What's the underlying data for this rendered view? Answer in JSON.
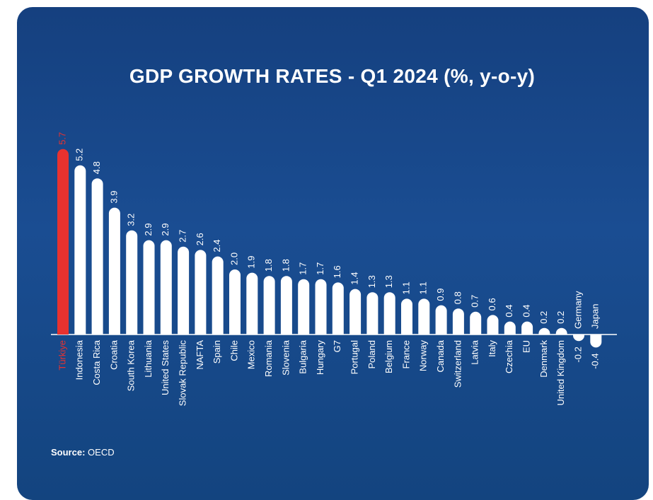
{
  "chart_data": {
    "type": "bar",
    "title": "GDP GROWTH RATES - Q1 2024 (%, y-o-y)",
    "categories": [
      "Türkiye",
      "Indonesia",
      "Costa Rica",
      "Croatia",
      "South Korea",
      "Lithuania",
      "United States",
      "Slovak Republic",
      "NAFTA",
      "Spain",
      "Chile",
      "Mexico",
      "Romania",
      "Slovenia",
      "Bulgaria",
      "Hungary",
      "G7",
      "Portugal",
      "Poland",
      "Belgium",
      "France",
      "Norway",
      "Canada",
      "Switzerland",
      "Latvia",
      "Italy",
      "Czechia",
      "EU",
      "Denmark",
      "United Kingdom",
      "Germany",
      "Japan"
    ],
    "values": [
      5.7,
      5.2,
      4.8,
      3.9,
      3.2,
      2.9,
      2.9,
      2.7,
      2.6,
      2.4,
      2.0,
      1.9,
      1.8,
      1.8,
      1.7,
      1.7,
      1.6,
      1.4,
      1.3,
      1.3,
      1.1,
      1.1,
      0.9,
      0.8,
      0.7,
      0.6,
      0.4,
      0.4,
      0.2,
      0.2,
      -0.2,
      -0.4
    ],
    "value_labels": [
      "5.7",
      "5.2",
      "4.8",
      "3.9",
      "3.2",
      "2.9",
      "2.9",
      "2.7",
      "2.6",
      "2.4",
      "2.0",
      "1.9",
      "1.8",
      "1.8",
      "1.7",
      "1.7",
      "1.6",
      "1.4",
      "1.3",
      "1.3",
      "1.1",
      "1.1",
      "0.9",
      "0.8",
      "0.7",
      "0.6",
      "0.4",
      "0.4",
      "0.2",
      "0.2",
      "-0.2",
      "-0.4"
    ],
    "highlight": "Türkiye",
    "highlight_color": "#e8322f",
    "bar_color": "#ffffff",
    "background_color": "#17468a",
    "ylim": [
      -0.4,
      5.7
    ],
    "grid": false,
    "legend": "none"
  },
  "source": {
    "label": "Source:",
    "text": "OECD"
  }
}
